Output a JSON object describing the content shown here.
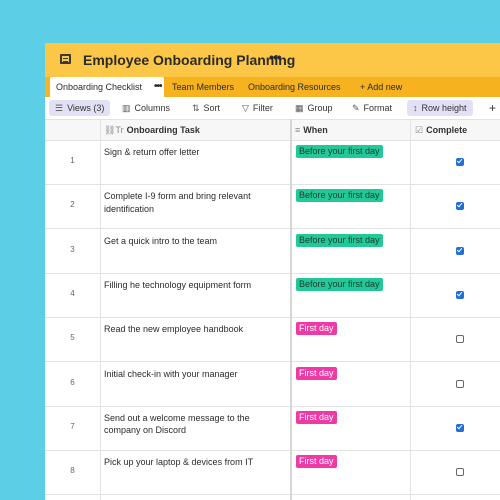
{
  "window": {
    "title": "Employee Onboarding Planning",
    "title_more": "•••"
  },
  "tabs": [
    {
      "label": "Onboarding Checklist",
      "more": "•••"
    },
    {
      "label": "Team Members"
    },
    {
      "label": "Onboarding Resources"
    },
    {
      "label": "+ Add new"
    }
  ],
  "toolbar": {
    "views": "Views (3)",
    "columns": "Columns",
    "sort": "Sort",
    "filter": "Filter",
    "group": "Group",
    "format": "Format",
    "row_height": "Row height",
    "add": "+"
  },
  "columns": [
    {
      "label": "Onboarding Task",
      "icon": "link-text-icon"
    },
    {
      "label": "When",
      "icon": "single-select-icon"
    },
    {
      "label": "Complete",
      "icon": "checkbox-icon"
    }
  ],
  "rows": [
    {
      "num": "1",
      "task": "Sign & return offer letter",
      "when": "Before your first day",
      "complete": true
    },
    {
      "num": "2",
      "task": "Complete I-9 form and bring relevant identification",
      "when": "Before your first day",
      "complete": true
    },
    {
      "num": "3",
      "task": "Get a quick intro to the team",
      "when": "Before your first day",
      "complete": true
    },
    {
      "num": "4",
      "task": "Filling he technology equipment form",
      "when": "Before your first day",
      "complete": true
    },
    {
      "num": "5",
      "task": "Read the new employee handbook",
      "when": "First day",
      "complete": false
    },
    {
      "num": "6",
      "task": "Initial check-in with your manager",
      "when": "First day",
      "complete": false
    },
    {
      "num": "7",
      "task": "Send out a welcome message to the company on Discord",
      "when": "First day",
      "complete": true
    },
    {
      "num": "8",
      "task": "Pick up your laptop & devices from IT",
      "when": "First day",
      "complete": false
    }
  ],
  "colors": {
    "background": "#5ccfe6",
    "titlebar": "#fcc746",
    "tabsbar": "#f6b21f",
    "pill_green": "#20c997",
    "pill_pink": "#ee3aa5",
    "checkbox": "#1f6fd6"
  }
}
